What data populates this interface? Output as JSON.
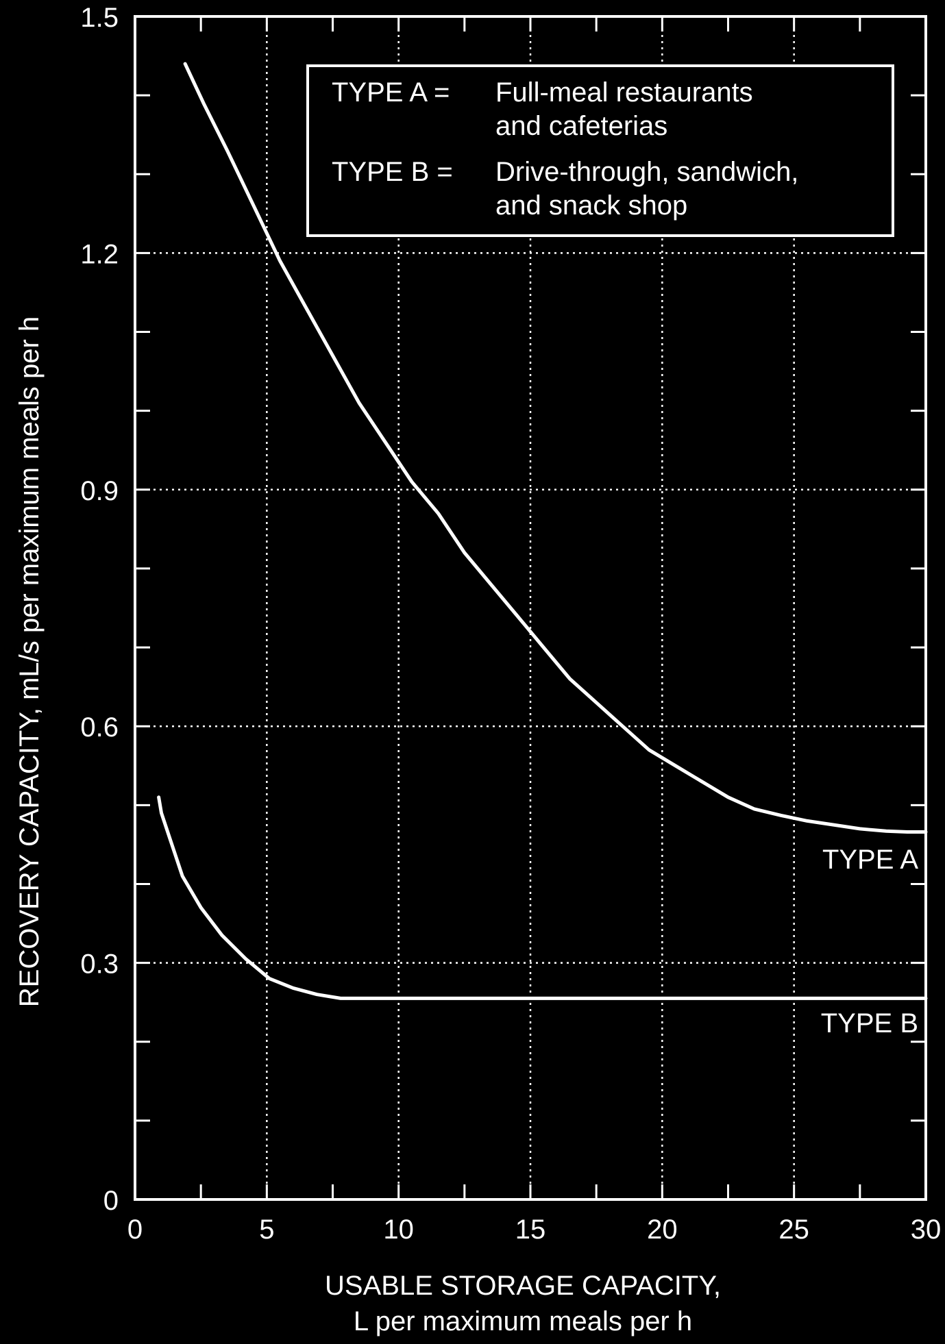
{
  "chart_data": {
    "type": "line",
    "xlabel_line1": "USABLE STORAGE CAPACITY,",
    "xlabel_line2": "L per maximum meals per h",
    "ylabel": "RECOVERY CAPACITY, mL/s per maximum meals per h",
    "xlim": [
      0,
      30
    ],
    "ylim": [
      0,
      1.5
    ],
    "x_ticks": [
      0,
      5,
      10,
      15,
      20,
      25,
      30
    ],
    "x_tick_labels": [
      "0",
      "5",
      "10",
      "15",
      "20",
      "25",
      "30"
    ],
    "y_ticks": [
      0,
      0.3,
      0.6,
      0.9,
      1.2,
      1.5
    ],
    "y_tick_labels": [
      "0",
      "0.3",
      "0.6",
      "0.9",
      "1.2",
      "1.5"
    ],
    "grid": true,
    "legend": {
      "placement": "top-right",
      "lines": [
        [
          "TYPE A =",
          "Full-meal restaurants"
        ],
        [
          "",
          "and cafeterias"
        ],
        [
          "TYPE B =",
          "Drive-through, sandwich,"
        ],
        [
          "",
          "and snack shop"
        ]
      ]
    },
    "series": [
      {
        "name": "TYPE A",
        "x": [
          1.9,
          2.6,
          3.5,
          4.5,
          5.5,
          6.5,
          7.5,
          8.5,
          9.5,
          10.5,
          11.5,
          12.5,
          13.5,
          14.5,
          15.5,
          16.5,
          17.5,
          18.5,
          19.5,
          20.5,
          21.5,
          22.5,
          23.5,
          24.5,
          25.5,
          26.5,
          27.5,
          28.5,
          29.3,
          30
        ],
        "y": [
          1.44,
          1.39,
          1.33,
          1.26,
          1.19,
          1.13,
          1.07,
          1.01,
          0.96,
          0.91,
          0.87,
          0.82,
          0.78,
          0.74,
          0.7,
          0.66,
          0.63,
          0.6,
          0.57,
          0.55,
          0.53,
          0.51,
          0.495,
          0.487,
          0.48,
          0.475,
          0.47,
          0.467,
          0.466,
          0.466
        ]
      },
      {
        "name": "TYPE B",
        "x": [
          0.9,
          1.0,
          1.3,
          1.8,
          2.5,
          3.3,
          4.2,
          5.1,
          6.0,
          6.9,
          7.8,
          9,
          12,
          16,
          20,
          25,
          30
        ],
        "y": [
          0.51,
          0.49,
          0.46,
          0.41,
          0.37,
          0.335,
          0.305,
          0.28,
          0.268,
          0.26,
          0.255,
          0.255,
          0.255,
          0.255,
          0.255,
          0.255,
          0.255
        ]
      }
    ],
    "curve_labels": [
      "TYPE A",
      "TYPE B"
    ]
  }
}
